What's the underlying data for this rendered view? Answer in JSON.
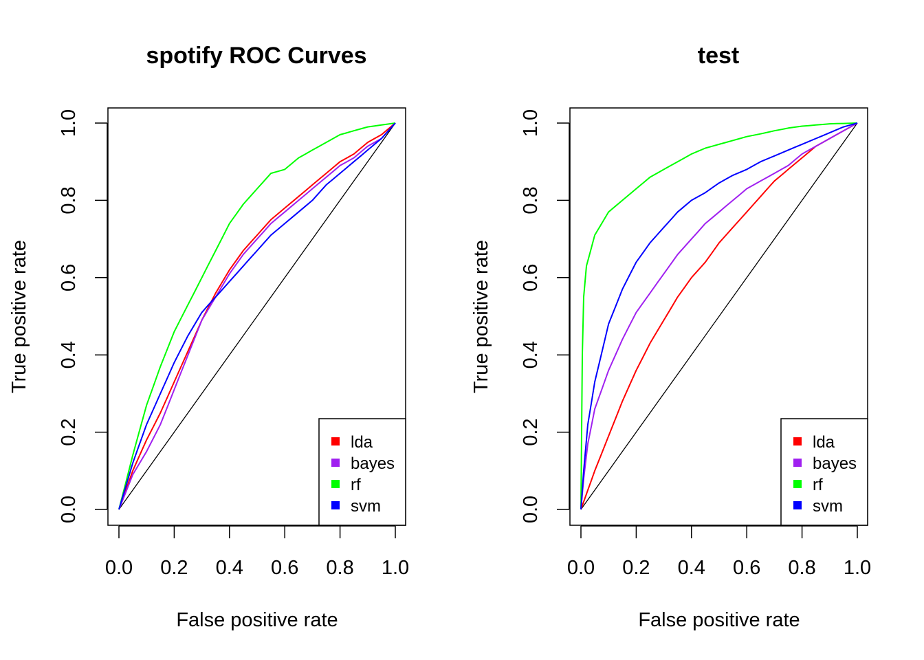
{
  "chart_data": [
    {
      "type": "line",
      "title": "spotify ROC Curves",
      "xlabel": "False positive rate",
      "ylabel": "True positive rate",
      "xlim": [
        0,
        1
      ],
      "ylim": [
        0,
        1
      ],
      "xticks": [
        "0.0",
        "0.2",
        "0.4",
        "0.6",
        "0.8",
        "1.0"
      ],
      "yticks": [
        "0.0",
        "0.2",
        "0.4",
        "0.6",
        "0.8",
        "1.0"
      ],
      "grid": false,
      "legend": "bottom-right",
      "reference_line": {
        "x": [
          0,
          1
        ],
        "y": [
          0,
          1
        ],
        "color": "#000000"
      },
      "series": [
        {
          "name": "lda",
          "color": "#ff0000",
          "x": [
            0,
            0.05,
            0.1,
            0.15,
            0.2,
            0.25,
            0.3,
            0.35,
            0.4,
            0.45,
            0.5,
            0.55,
            0.6,
            0.65,
            0.7,
            0.75,
            0.8,
            0.85,
            0.9,
            0.95,
            1.0
          ],
          "y": [
            0,
            0.1,
            0.18,
            0.25,
            0.33,
            0.41,
            0.49,
            0.56,
            0.62,
            0.67,
            0.71,
            0.75,
            0.78,
            0.81,
            0.84,
            0.87,
            0.9,
            0.92,
            0.95,
            0.97,
            1.0
          ]
        },
        {
          "name": "bayes",
          "color": "#a020f0",
          "x": [
            0,
            0.05,
            0.1,
            0.15,
            0.2,
            0.25,
            0.3,
            0.35,
            0.4,
            0.45,
            0.5,
            0.55,
            0.6,
            0.65,
            0.7,
            0.75,
            0.8,
            0.85,
            0.9,
            0.95,
            1.0
          ],
          "y": [
            0,
            0.09,
            0.15,
            0.22,
            0.31,
            0.4,
            0.49,
            0.55,
            0.61,
            0.66,
            0.7,
            0.74,
            0.77,
            0.8,
            0.83,
            0.86,
            0.89,
            0.91,
            0.94,
            0.96,
            1.0
          ]
        },
        {
          "name": "rf",
          "color": "#00ff00",
          "x": [
            0,
            0.05,
            0.1,
            0.15,
            0.2,
            0.25,
            0.3,
            0.35,
            0.4,
            0.45,
            0.5,
            0.55,
            0.6,
            0.65,
            0.7,
            0.75,
            0.8,
            0.85,
            0.9,
            0.95,
            1.0
          ],
          "y": [
            0,
            0.14,
            0.27,
            0.37,
            0.46,
            0.53,
            0.6,
            0.67,
            0.74,
            0.79,
            0.83,
            0.87,
            0.88,
            0.91,
            0.93,
            0.95,
            0.97,
            0.98,
            0.99,
            0.995,
            1.0
          ]
        },
        {
          "name": "svm",
          "color": "#0000ff",
          "x": [
            0,
            0.05,
            0.1,
            0.15,
            0.2,
            0.25,
            0.3,
            0.35,
            0.4,
            0.45,
            0.5,
            0.55,
            0.6,
            0.65,
            0.7,
            0.75,
            0.8,
            0.85,
            0.9,
            0.95,
            1.0
          ],
          "y": [
            0,
            0.12,
            0.22,
            0.3,
            0.38,
            0.45,
            0.51,
            0.55,
            0.59,
            0.63,
            0.67,
            0.71,
            0.74,
            0.77,
            0.8,
            0.84,
            0.87,
            0.9,
            0.93,
            0.96,
            1.0
          ]
        }
      ],
      "legend_colors": [
        "#ff0000",
        "#a020f0",
        "#00ff00",
        "#0000ff"
      ]
    },
    {
      "type": "line",
      "title": "test",
      "xlabel": "False positive rate",
      "ylabel": "True positive rate",
      "xlim": [
        0,
        1
      ],
      "ylim": [
        0,
        1
      ],
      "xticks": [
        "0.0",
        "0.2",
        "0.4",
        "0.6",
        "0.8",
        "1.0"
      ],
      "yticks": [
        "0.0",
        "0.2",
        "0.4",
        "0.6",
        "0.8",
        "1.0"
      ],
      "grid": false,
      "legend": "bottom-right",
      "reference_line": {
        "x": [
          0,
          1
        ],
        "y": [
          0,
          1
        ],
        "color": "#000000"
      },
      "series": [
        {
          "name": "lda",
          "color": "#ff0000",
          "x": [
            0,
            0.025,
            0.05,
            0.1,
            0.15,
            0.2,
            0.25,
            0.3,
            0.35,
            0.4,
            0.45,
            0.5,
            0.55,
            0.6,
            0.65,
            0.7,
            0.75,
            0.8,
            0.85,
            0.9,
            0.95,
            1.0
          ],
          "y": [
            0,
            0.05,
            0.1,
            0.19,
            0.28,
            0.36,
            0.43,
            0.49,
            0.55,
            0.6,
            0.64,
            0.69,
            0.73,
            0.77,
            0.81,
            0.85,
            0.88,
            0.91,
            0.94,
            0.96,
            0.98,
            1.0
          ]
        },
        {
          "name": "bayes",
          "color": "#a020f0",
          "x": [
            0,
            0.01,
            0.025,
            0.05,
            0.1,
            0.15,
            0.2,
            0.25,
            0.3,
            0.35,
            0.4,
            0.45,
            0.5,
            0.55,
            0.6,
            0.65,
            0.7,
            0.75,
            0.8,
            0.85,
            0.9,
            0.95,
            1.0
          ],
          "y": [
            0,
            0.08,
            0.17,
            0.26,
            0.36,
            0.44,
            0.51,
            0.56,
            0.61,
            0.66,
            0.7,
            0.74,
            0.77,
            0.8,
            0.83,
            0.85,
            0.87,
            0.89,
            0.92,
            0.94,
            0.96,
            0.98,
            1.0
          ]
        },
        {
          "name": "rf",
          "color": "#00ff00",
          "x": [
            0,
            0.005,
            0.01,
            0.02,
            0.05,
            0.1,
            0.15,
            0.2,
            0.25,
            0.3,
            0.35,
            0.4,
            0.45,
            0.5,
            0.55,
            0.6,
            0.65,
            0.7,
            0.75,
            0.8,
            0.85,
            0.9,
            0.95,
            1.0
          ],
          "y": [
            0,
            0.4,
            0.55,
            0.63,
            0.71,
            0.77,
            0.8,
            0.83,
            0.86,
            0.88,
            0.9,
            0.92,
            0.935,
            0.945,
            0.955,
            0.965,
            0.972,
            0.98,
            0.987,
            0.992,
            0.995,
            0.998,
            0.999,
            1.0
          ]
        },
        {
          "name": "svm",
          "color": "#0000ff",
          "x": [
            0,
            0.01,
            0.025,
            0.05,
            0.1,
            0.15,
            0.2,
            0.25,
            0.3,
            0.35,
            0.4,
            0.45,
            0.5,
            0.55,
            0.6,
            0.65,
            0.7,
            0.75,
            0.8,
            0.85,
            0.9,
            0.95,
            1.0
          ],
          "y": [
            0,
            0.1,
            0.22,
            0.33,
            0.48,
            0.57,
            0.64,
            0.69,
            0.73,
            0.77,
            0.8,
            0.82,
            0.845,
            0.865,
            0.88,
            0.9,
            0.915,
            0.93,
            0.945,
            0.96,
            0.975,
            0.99,
            1.0
          ]
        }
      ],
      "legend_colors": [
        "#ff0000",
        "#a020f0",
        "#00ff00",
        "#0000ff"
      ]
    }
  ]
}
